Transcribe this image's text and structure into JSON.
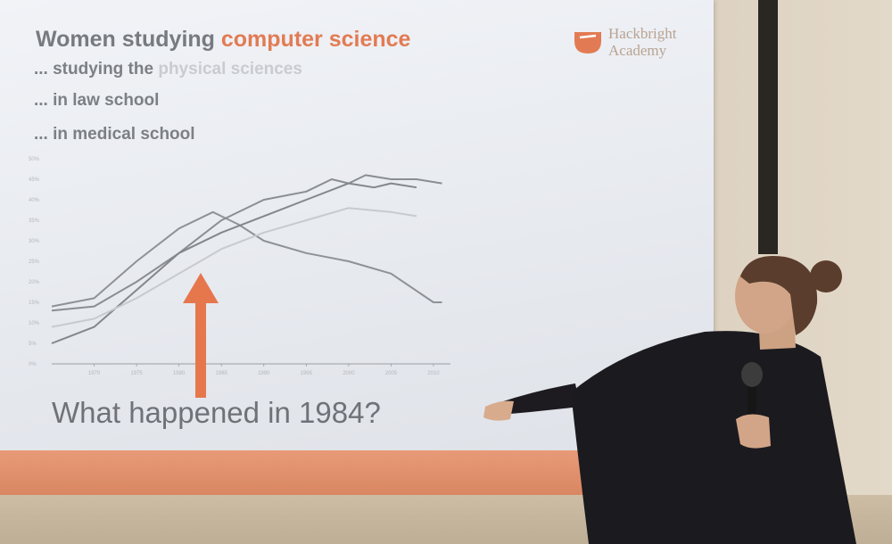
{
  "slide": {
    "title_plain": "Women studying ",
    "title_accent": "computer science",
    "lines": [
      {
        "prefix": "... studying the ",
        "faint": "physical sciences"
      },
      {
        "text": "... in law school"
      },
      {
        "text": "... in medical school"
      }
    ],
    "logo": {
      "line1": "Hackbright",
      "line2": "Academy"
    },
    "question": "What happened in 1984?",
    "accent_color": "#e27b53"
  },
  "chart_data": {
    "type": "line",
    "ylim": [
      0,
      50
    ],
    "xlim": [
      1965,
      2012
    ],
    "y_ticks": [
      "0%",
      "5%",
      "10%",
      "15%",
      "20%",
      "25%",
      "30%",
      "35%",
      "40%",
      "45%",
      "50%"
    ],
    "x_ticks": [
      "1970",
      "1975",
      "1980",
      "1985",
      "1990",
      "1995",
      "2000",
      "2005",
      "2010"
    ],
    "series": [
      {
        "x": [
          1965,
          1970,
          1975,
          1980,
          1984,
          1987,
          1990,
          1995,
          2000,
          2005,
          2010,
          2011
        ],
        "y": [
          14,
          16,
          25,
          33,
          37,
          34,
          30,
          27,
          25,
          22,
          15,
          15
        ]
      },
      {
        "x": [
          1965,
          1970,
          1975,
          1980,
          1985,
          1990,
          1995,
          1998,
          2000,
          2002,
          2005,
          2008,
          2011
        ],
        "y": [
          13,
          14,
          20,
          27,
          35,
          40,
          42,
          45,
          44,
          46,
          45,
          45,
          44
        ]
      },
      {
        "x": [
          1965,
          1970,
          1975,
          1980,
          1985,
          1990,
          1995,
          2000,
          2003,
          2005,
          2008
        ],
        "y": [
          5,
          9,
          18,
          27,
          32,
          36,
          40,
          44,
          43,
          44,
          43
        ]
      },
      {
        "x": [
          1965,
          1970,
          1975,
          1980,
          1985,
          1990,
          1995,
          2000,
          2005,
          2008
        ],
        "y": [
          9,
          11,
          16,
          22,
          28,
          32,
          35,
          38,
          37,
          36
        ]
      }
    ]
  }
}
